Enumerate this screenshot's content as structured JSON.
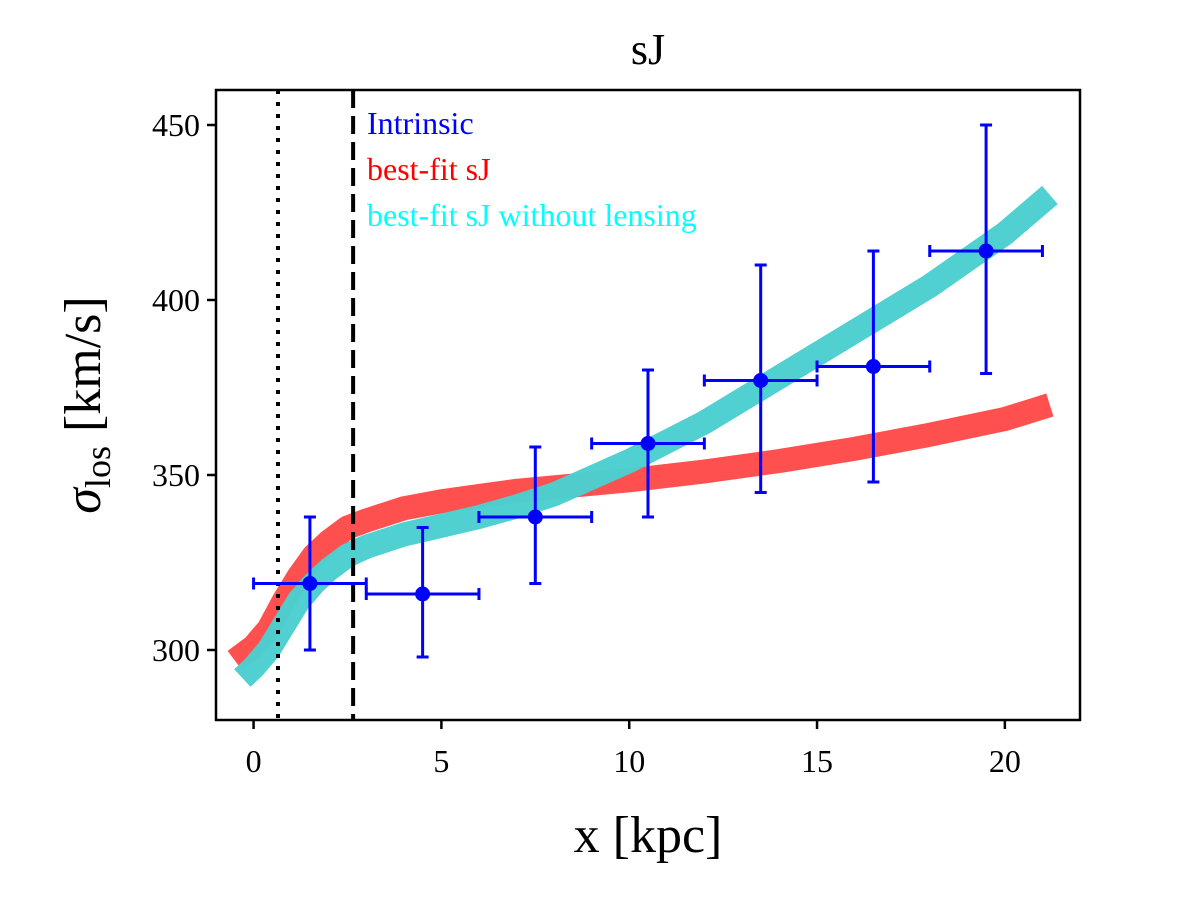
{
  "chart_data": {
    "type": "line",
    "title": "sJ",
    "xlabel": "x [kpc]",
    "ylabel_symbol": "σ",
    "ylabel_subscript": "los",
    "ylabel_unit": "[km/s]",
    "xlim": [
      -1,
      22
    ],
    "ylim": [
      280,
      460
    ],
    "xticks": [
      0,
      5,
      10,
      15,
      20
    ],
    "yticks": [
      300,
      350,
      400,
      450
    ],
    "grid": false,
    "legend": {
      "placement": "top-left",
      "entries": [
        {
          "label": "Intrinsic",
          "color": "#0000ff"
        },
        {
          "label": "best-fit sJ",
          "color": "#ff0000"
        },
        {
          "label": "best-fit sJ without lensing",
          "color": "#00ffff"
        }
      ]
    },
    "vlines": [
      {
        "x": 0.65,
        "style": "dotted",
        "color": "#000000"
      },
      {
        "x": 2.65,
        "style": "dashed",
        "color": "#000000"
      }
    ],
    "series": [
      {
        "name": "best-fit sJ",
        "color": "#ff4c4c",
        "x": [
          -0.5,
          0.0,
          0.4,
          0.8,
          1.2,
          1.6,
          2.0,
          2.5,
          3.0,
          4.0,
          5.0,
          6.0,
          7.0,
          8.0,
          10.0,
          12.0,
          14.0,
          16.0,
          18.0,
          20.0,
          21.2
        ],
        "y": [
          297,
          301,
          306,
          314,
          321,
          327,
          331,
          335,
          337,
          340.5,
          342.5,
          344,
          345.5,
          346.5,
          348.5,
          351,
          354,
          357.5,
          361.5,
          366,
          370
        ]
      },
      {
        "name": "best-fit sJ without lensing",
        "color": "#4ccfcf",
        "x": [
          -0.3,
          0.0,
          0.4,
          0.8,
          1.2,
          1.6,
          2.0,
          2.5,
          3.0,
          4.0,
          5.0,
          6.0,
          7.0,
          8.0,
          10.0,
          12.0,
          14.0,
          16.0,
          18.0,
          20.0,
          21.2
        ],
        "y": [
          292,
          295,
          300,
          307,
          314,
          319,
          323,
          327,
          329.5,
          333,
          335.5,
          338,
          341,
          344.5,
          354,
          365,
          378,
          391,
          404,
          419,
          430
        ]
      }
    ],
    "errorbar_series": {
      "name": "Intrinsic",
      "color": "#0000ff",
      "points": [
        {
          "x": 1.5,
          "y": 319,
          "xerr": 1.5,
          "yerr_low": 19,
          "yerr_high": 19
        },
        {
          "x": 4.5,
          "y": 316,
          "xerr": 1.5,
          "yerr_low": 18,
          "yerr_high": 19
        },
        {
          "x": 7.5,
          "y": 338,
          "xerr": 1.5,
          "yerr_low": 19,
          "yerr_high": 20
        },
        {
          "x": 10.5,
          "y": 359,
          "xerr": 1.5,
          "yerr_low": 21,
          "yerr_high": 21
        },
        {
          "x": 13.5,
          "y": 377,
          "xerr": 1.5,
          "yerr_low": 32,
          "yerr_high": 33
        },
        {
          "x": 16.5,
          "y": 381,
          "xerr": 1.5,
          "yerr_low": 33,
          "yerr_high": 33
        },
        {
          "x": 19.5,
          "y": 414,
          "xerr": 1.5,
          "yerr_low": 35,
          "yerr_high": 36
        }
      ]
    }
  }
}
